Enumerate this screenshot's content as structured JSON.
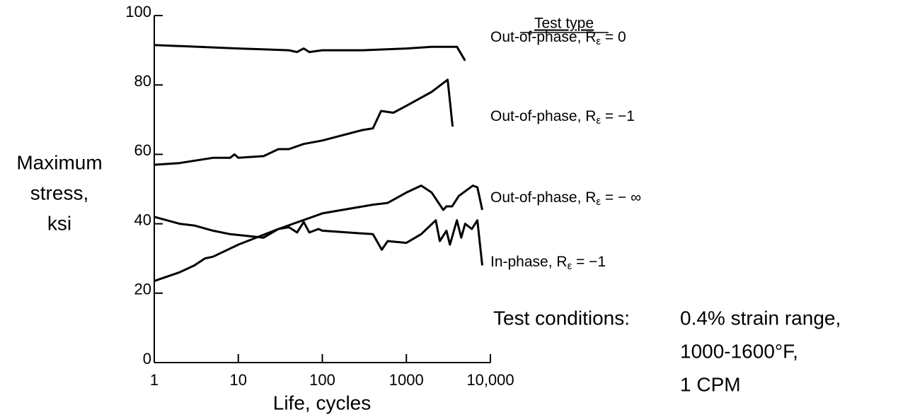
{
  "chart_data": {
    "type": "line",
    "xlabel": "Life, cycles",
    "ylabel": [
      "Maximum",
      "stress,",
      "ksi"
    ],
    "xscale": "log",
    "xlim": [
      1,
      10000
    ],
    "ylim": [
      0,
      100
    ],
    "xticks": [
      1,
      10,
      100,
      1000,
      {
        "value": 10000,
        "label": "10,000"
      }
    ],
    "yticks": [
      0,
      20,
      40,
      60,
      80,
      100
    ],
    "grid": false,
    "legend_title": "Test type",
    "series": [
      {
        "name": "Out-of-phase, Rε = 0",
        "color": "#000000",
        "x": [
          1,
          10,
          40,
          50,
          60,
          70,
          100,
          300,
          1000,
          2000,
          4000,
          5000
        ],
        "values": [
          91.5,
          90.5,
          90,
          89.5,
          90.5,
          89.5,
          90,
          90,
          90.5,
          91,
          91,
          87
        ]
      },
      {
        "name": "Out-of-phase, Rε = −1",
        "color": "#000000",
        "x": [
          1,
          2,
          5,
          8,
          9,
          10,
          20,
          30,
          40,
          60,
          100,
          300,
          400,
          500,
          700,
          1000,
          2000,
          3100,
          3550
        ],
        "values": [
          57,
          57.5,
          59,
          59,
          60,
          59,
          59.5,
          61.5,
          61.5,
          63,
          64,
          67,
          67.5,
          72.5,
          72,
          74,
          78,
          81.5,
          68
        ]
      },
      {
        "name": "Out-of-phase, Rε = − ∞",
        "color": "#000000",
        "x": [
          1,
          2,
          3,
          4,
          5,
          10,
          30,
          100,
          400,
          600,
          1000,
          1500,
          2000,
          2750,
          3000,
          3500,
          4200,
          6200,
          7000,
          8000
        ],
        "values": [
          23.5,
          26,
          28,
          30,
          30.5,
          34,
          38.5,
          43,
          45.5,
          46,
          49,
          51,
          49,
          44,
          45,
          45,
          48,
          51,
          50.5,
          44
        ]
      },
      {
        "name": "In-phase, Rε = −1",
        "color": "#000000",
        "x": [
          1,
          2,
          3,
          5,
          8,
          20,
          30,
          40,
          50,
          60,
          70,
          90,
          100,
          400,
          510,
          600,
          1000,
          1500,
          2240,
          2500,
          3000,
          3300,
          4000,
          4500,
          5000,
          6000,
          7000,
          8000
        ],
        "values": [
          42,
          40,
          39.5,
          38,
          37,
          36,
          38.5,
          39,
          37.5,
          40.5,
          37.5,
          38.5,
          38,
          37,
          32.5,
          35,
          34.5,
          37,
          41,
          35,
          38,
          34,
          41,
          36,
          40,
          38.5,
          41,
          28
        ]
      }
    ],
    "annotation_title": "Test conditions:",
    "annotation_lines": [
      "0.4% strain range,",
      "1000-1600°F,",
      "1 CPM"
    ]
  }
}
